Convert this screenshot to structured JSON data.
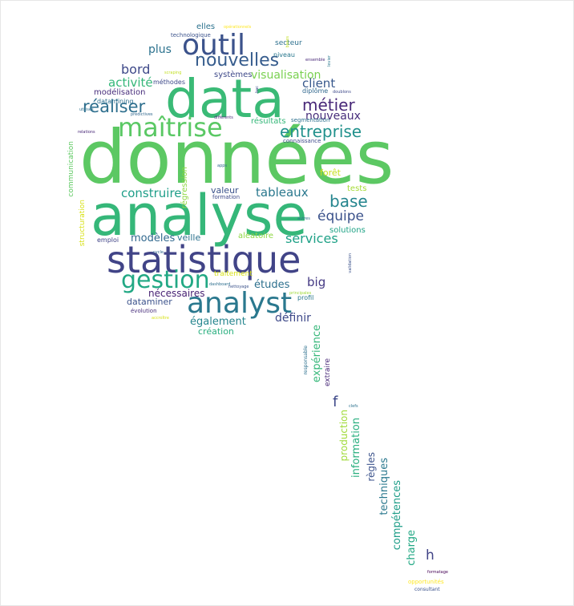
{
  "words": [
    {
      "t": "données",
      "c": "#5cc863"
    },
    {
      "t": "analyse",
      "c": "#35b779"
    },
    {
      "t": "data",
      "c": "#3aba76"
    },
    {
      "t": "statistique",
      "c": "#414487"
    },
    {
      "t": "analyst",
      "c": "#2a788e"
    },
    {
      "t": "outil",
      "c": "#3b528b"
    },
    {
      "t": "maîtrise",
      "c": "#5ac864"
    },
    {
      "t": "gestion",
      "c": "#22a884"
    },
    {
      "t": "nouvelles",
      "c": "#365c8d"
    },
    {
      "t": "réaliser",
      "c": "#2e6f8e"
    },
    {
      "t": "entreprise",
      "c": "#21918c"
    },
    {
      "t": "métier",
      "c": "#482878"
    },
    {
      "t": "bord",
      "c": "#3e4989"
    },
    {
      "t": "visualisation",
      "c": "#7ad151"
    },
    {
      "t": "activité",
      "c": "#35b779"
    },
    {
      "t": "plus",
      "c": "#2c728e"
    },
    {
      "t": "client",
      "c": "#38588c"
    },
    {
      "t": "nouveaux",
      "c": "#472d7b"
    },
    {
      "t": "construire",
      "c": "#1f9e89"
    },
    {
      "t": "tableaux",
      "c": "#2a788e"
    },
    {
      "t": "base",
      "c": "#25858e"
    },
    {
      "t": "équipe",
      "c": "#3b528b"
    },
    {
      "t": "services",
      "c": "#1fa187"
    },
    {
      "t": "modèles",
      "c": "#31688e"
    },
    {
      "t": "études",
      "c": "#2d708e"
    },
    {
      "t": "big",
      "c": "#443983"
    },
    {
      "t": "définir",
      "c": "#3e4989"
    },
    {
      "t": "également",
      "c": "#25858e"
    },
    {
      "t": "création",
      "c": "#29af7f"
    },
    {
      "t": "nécessaires",
      "c": "#482374"
    },
    {
      "t": "dataminer",
      "c": "#3b528b"
    },
    {
      "t": "valeur",
      "c": "#3b528b"
    },
    {
      "t": "veille",
      "c": "#2c728e"
    },
    {
      "t": "aléatoire",
      "c": "#8fd744"
    },
    {
      "t": "solutions",
      "c": "#20a386"
    },
    {
      "t": "systèmes",
      "c": "#3e4989"
    },
    {
      "t": "résultats",
      "c": "#35b779"
    },
    {
      "t": "forêt",
      "c": "#c8e020"
    },
    {
      "t": "tests",
      "c": "#a5db36"
    },
    {
      "t": "régression",
      "c": "#8fd744"
    },
    {
      "t": "modélisation",
      "c": "#472d7b"
    },
    {
      "t": "datamining",
      "c": "#2e6f8e"
    },
    {
      "t": "méthodes",
      "c": "#3e4989"
    },
    {
      "t": "elles",
      "c": "#2c728e"
    },
    {
      "t": "technologique",
      "c": "#3b528b"
    },
    {
      "t": "secteur",
      "c": "#2d708e"
    },
    {
      "t": "niveau",
      "c": "#2a788e"
    },
    {
      "t": "diplôme",
      "c": "#31688e"
    },
    {
      "t": "segmentation",
      "c": "#2d708e"
    },
    {
      "t": "connaissance",
      "c": "#3e4989"
    },
    {
      "t": "communication",
      "c": "#5ec962"
    },
    {
      "t": "structuration",
      "c": "#d8e219"
    },
    {
      "t": "formation",
      "c": "#3e4989"
    },
    {
      "t": "emploi",
      "c": "#414487"
    },
    {
      "t": "traitement",
      "c": "#d8e219"
    },
    {
      "t": "évolution",
      "c": "#472d7b"
    },
    {
      "t": "profil",
      "c": "#2a788e"
    },
    {
      "t": "expérience",
      "c": "#35b779"
    },
    {
      "t": "extraire",
      "c": "#482878"
    },
    {
      "t": "f",
      "c": "#3e4989"
    },
    {
      "t": "production",
      "c": "#a0da39"
    },
    {
      "t": "information",
      "c": "#29af7f"
    },
    {
      "t": "règles",
      "c": "#3b528b"
    },
    {
      "t": "techniques",
      "c": "#2a788e"
    },
    {
      "t": "compétences",
      "c": "#1f9e89"
    },
    {
      "t": "charge",
      "c": "#22a884"
    },
    {
      "t": "h",
      "c": "#414487"
    },
    {
      "t": "opportunités",
      "c": "#fde725"
    },
    {
      "t": "consultant",
      "c": "#3b528b"
    },
    {
      "t": "formatage",
      "c": "#440154"
    },
    {
      "t": "responsable",
      "c": "#2d708e"
    },
    {
      "t": "dashboard",
      "c": "#2e6f8e"
    },
    {
      "t": "relations",
      "c": "#482878"
    },
    {
      "t": "prédictives",
      "c": "#31688e"
    },
    {
      "t": "différents",
      "c": "#482878"
    },
    {
      "t": "doublons",
      "c": "#3e4989"
    },
    {
      "t": "nettoyage",
      "c": "#3b528b"
    },
    {
      "t": "bac",
      "c": "#3e4989"
    },
    {
      "t": "ensemble",
      "c": "#482878"
    },
    {
      "t": "autres",
      "c": "#2d708e"
    },
    {
      "t": "validation",
      "c": "#3b528b"
    },
    {
      "t": "clefs",
      "c": "#2c728e"
    },
    {
      "t": "principales",
      "c": "#a0da39"
    },
    {
      "t": "accroître",
      "c": "#d8e219"
    },
    {
      "t": "opérationnels",
      "c": "#fde725"
    },
    {
      "t": "scraping",
      "c": "#c2df23"
    },
    {
      "t": "utilisés",
      "c": "#2d708e"
    },
    {
      "t": "apps",
      "c": "#31688e"
    },
    {
      "t": "levier",
      "c": "#2a788e"
    },
    {
      "t": "cycle",
      "c": "#31688e"
    },
    {
      "t": "bases",
      "c": "#c2df23"
    }
  ]
}
